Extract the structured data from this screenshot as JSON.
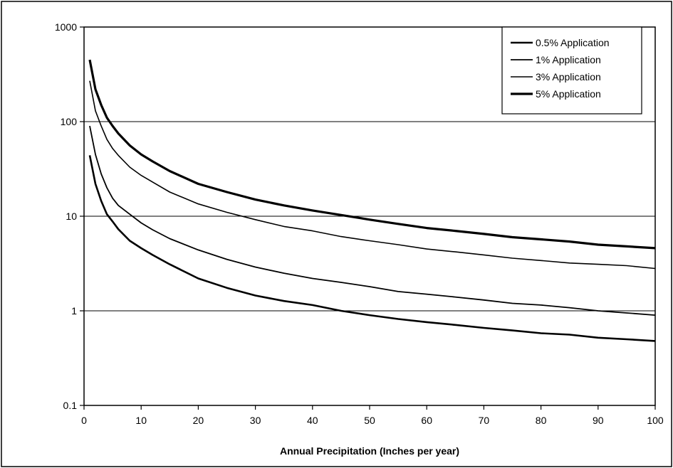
{
  "chart_data": {
    "type": "line",
    "title": "",
    "xlabel": "Annual Precipitation (Inches per year)",
    "ylabel": "",
    "xlim": [
      0,
      100
    ],
    "ylim": [
      0.1,
      1000
    ],
    "y_scale": "log",
    "x_ticks": [
      "0",
      "10",
      "20",
      "30",
      "40",
      "50",
      "60",
      "70",
      "80",
      "90",
      "100"
    ],
    "y_ticks": [
      "0.1",
      "1",
      "10",
      "100",
      "1000"
    ],
    "grid": "horizontal",
    "legend_position": "top-right",
    "series": [
      {
        "name": "0.5% Application",
        "x": [
          1,
          2,
          3,
          4,
          5,
          6,
          8,
          10,
          12,
          15,
          20,
          25,
          30,
          35,
          40,
          45,
          50,
          55,
          60,
          65,
          70,
          75,
          80,
          85,
          90,
          95,
          100
        ],
        "y": [
          44,
          22,
          14.5,
          10.5,
          8.8,
          7.3,
          5.5,
          4.6,
          3.9,
          3.1,
          2.2,
          1.75,
          1.45,
          1.27,
          1.15,
          1.0,
          0.9,
          0.82,
          0.76,
          0.71,
          0.66,
          0.62,
          0.58,
          0.56,
          0.52,
          0.5,
          0.48
        ]
      },
      {
        "name": "1% Application",
        "x": [
          1,
          2,
          3,
          4,
          5,
          6,
          8,
          10,
          12,
          15,
          20,
          25,
          30,
          35,
          40,
          45,
          50,
          55,
          60,
          65,
          70,
          75,
          80,
          85,
          90,
          95,
          100
        ],
        "y": [
          90,
          45,
          28,
          20,
          15.5,
          13,
          10.5,
          8.5,
          7.2,
          5.8,
          4.4,
          3.5,
          2.9,
          2.5,
          2.2,
          2.0,
          1.8,
          1.6,
          1.5,
          1.4,
          1.3,
          1.2,
          1.15,
          1.08,
          1.0,
          0.95,
          0.9
        ]
      },
      {
        "name": "3% Application",
        "x": [
          1,
          2,
          3,
          4,
          5,
          6,
          8,
          10,
          12,
          15,
          20,
          25,
          30,
          35,
          40,
          45,
          50,
          55,
          60,
          65,
          70,
          75,
          80,
          85,
          90,
          95,
          100
        ],
        "y": [
          270,
          130,
          90,
          65,
          52,
          44,
          33,
          27,
          23,
          18,
          13.5,
          11,
          9.2,
          7.8,
          7.0,
          6.1,
          5.5,
          5.0,
          4.5,
          4.2,
          3.9,
          3.6,
          3.4,
          3.2,
          3.1,
          3.0,
          2.8
        ]
      },
      {
        "name": "5% Application",
        "x": [
          1,
          2,
          3,
          4,
          5,
          6,
          8,
          10,
          12,
          15,
          20,
          25,
          30,
          35,
          40,
          45,
          50,
          55,
          60,
          65,
          70,
          75,
          80,
          85,
          90,
          95,
          100
        ],
        "y": [
          450,
          220,
          150,
          110,
          90,
          75,
          56,
          45,
          38,
          30,
          22,
          18,
          15,
          13,
          11.5,
          10.3,
          9.2,
          8.3,
          7.5,
          7.0,
          6.5,
          6.0,
          5.7,
          5.4,
          5.0,
          4.8,
          4.6
        ]
      }
    ]
  }
}
